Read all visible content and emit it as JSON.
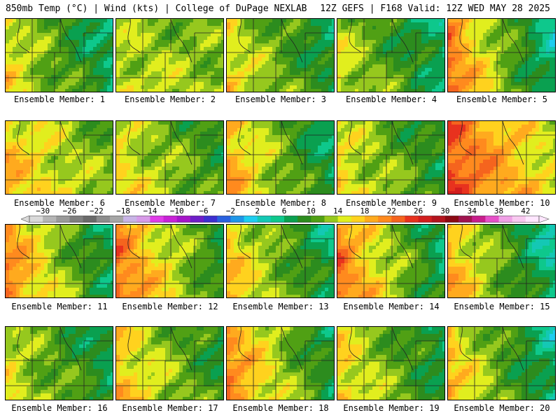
{
  "header": {
    "left": "850mb Temp (°C) | Wind (kts) | College of DuPage NEXLAB",
    "right": "12Z GEFS | F168 Valid: 12Z WED MAY 28 2025"
  },
  "panels": [
    {
      "label": "Ensemble Member: 1",
      "west": 16,
      "east": 6
    },
    {
      "label": "Ensemble Member: 2",
      "west": 14,
      "east": 12
    },
    {
      "label": "Ensemble Member: 3",
      "west": 16,
      "east": 7
    },
    {
      "label": "Ensemble Member: 4",
      "west": 15,
      "east": 6
    },
    {
      "label": "Ensemble Member: 5",
      "west": 22,
      "east": 4
    },
    {
      "label": "Ensemble Member: 6",
      "west": 18,
      "east": 11
    },
    {
      "label": "Ensemble Member: 7",
      "west": 16,
      "east": 9
    },
    {
      "label": "Ensemble Member: 8",
      "west": 19,
      "east": 6
    },
    {
      "label": "Ensemble Member: 9",
      "west": 16,
      "east": 8
    },
    {
      "label": "Ensemble Member: 10",
      "west": 24,
      "east": 14
    },
    {
      "label": "Ensemble Member: 11",
      "west": 21,
      "east": 6
    },
    {
      "label": "Ensemble Member: 12",
      "west": 22,
      "east": 8
    },
    {
      "label": "Ensemble Member: 13",
      "west": 18,
      "east": 6
    },
    {
      "label": "Ensemble Member: 14",
      "west": 22,
      "east": 6
    },
    {
      "label": "Ensemble Member: 15",
      "west": 19,
      "east": 4
    },
    {
      "label": "Ensemble Member: 16",
      "west": 15,
      "east": 7
    },
    {
      "label": "Ensemble Member: 17",
      "west": 18,
      "east": 8
    },
    {
      "label": "Ensemble Member: 18",
      "west": 21,
      "east": 7
    },
    {
      "label": "Ensemble Member: 19",
      "west": 17,
      "east": 7
    },
    {
      "label": "Ensemble Member: 20",
      "west": 18,
      "east": 5
    }
  ],
  "colorbar": {
    "min": -32,
    "max": 44,
    "step": 2,
    "ticks": [
      "-30",
      "-26",
      "-22",
      "-18",
      "-14",
      "-10",
      "-6",
      "-2",
      "2",
      "6",
      "10",
      "14",
      "18",
      "22",
      "26",
      "30",
      "34",
      "38",
      "42"
    ],
    "colors": {
      "-32": "#d9d9d9",
      "-30": "#b5b5b5",
      "-28": "#9a9a9a",
      "-26": "#7f7f7f",
      "-24": "#6a6a6a",
      "-22": "#8c8c8c",
      "-20": "#a6a6a6",
      "-18": "#c8b4e6",
      "-16": "#d79ae8",
      "-14": "#e03ce8",
      "-12": "#c822d6",
      "-10": "#a516c8",
      "-8": "#6e1ec8",
      "-6": "#3d2fd0",
      "-4": "#2a62e0",
      "-2": "#1e96e8",
      "0": "#1ecdf0",
      "2": "#14c8b4",
      "4": "#0ec88c",
      "6": "#0aa050",
      "8": "#2c8c1e",
      "10": "#50a014",
      "12": "#96c81e",
      "14": "#e1ee1e",
      "16": "#ffd21e",
      "18": "#ffaa1e",
      "20": "#ff8a1e",
      "22": "#f5641e",
      "24": "#e8321e",
      "26": "#d21e1e",
      "28": "#b4141e",
      "30": "#8c0a14",
      "32": "#a01450",
      "34": "#c81e8c",
      "36": "#e650c8",
      "38": "#f0a0e6",
      "40": "#f8c8f0",
      "42": "#ffe6ff"
    }
  }
}
